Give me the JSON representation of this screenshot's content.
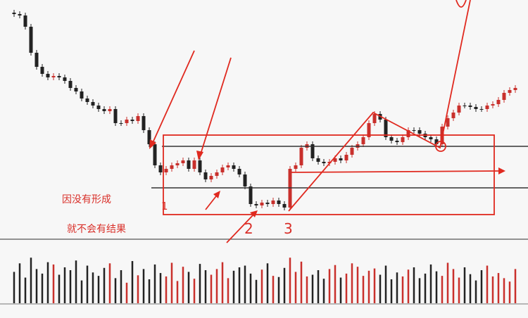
{
  "chart_data": {
    "type": "candlestick",
    "open": [
      322,
      320,
      318,
      302,
      265,
      245,
      235,
      230,
      232,
      230,
      225,
      215,
      210,
      200,
      195,
      190,
      185,
      182,
      185,
      165,
      165,
      170,
      168,
      175,
      155,
      135,
      105,
      95,
      100,
      105,
      108,
      112,
      100,
      112,
      95,
      85,
      90,
      95,
      102,
      105,
      100,
      92,
      75,
      50,
      48,
      52,
      50,
      55,
      50,
      45,
      100,
      105,
      130,
      135,
      115,
      110,
      108,
      110,
      115,
      112,
      120,
      130,
      135,
      145,
      165,
      178,
      170,
      145,
      140,
      138,
      145,
      155,
      155,
      150,
      145,
      142,
      135,
      160,
      172,
      180,
      190,
      190,
      188,
      185,
      185,
      190,
      192,
      198,
      208,
      212
    ],
    "high": [
      326,
      324,
      322,
      306,
      269,
      249,
      239,
      236,
      236,
      234,
      229,
      219,
      214,
      204,
      199,
      194,
      189,
      189,
      189,
      169,
      174,
      174,
      179,
      179,
      159,
      139,
      109,
      104,
      109,
      112,
      116,
      116,
      116,
      116,
      99,
      94,
      99,
      106,
      109,
      109,
      104,
      96,
      79,
      54,
      56,
      56,
      59,
      59,
      54,
      104,
      109,
      134,
      139,
      139,
      119,
      114,
      114,
      119,
      119,
      124,
      134,
      139,
      149,
      169,
      182,
      182,
      174,
      149,
      144,
      149,
      159,
      159,
      159,
      154,
      149,
      146,
      164,
      176,
      184,
      194,
      194,
      194,
      192,
      189,
      194,
      196,
      202,
      212,
      216,
      219
    ],
    "low": [
      316,
      314,
      298,
      261,
      241,
      231,
      226,
      226,
      226,
      221,
      211,
      206,
      196,
      191,
      186,
      181,
      178,
      178,
      161,
      161,
      161,
      164,
      164,
      151,
      131,
      101,
      91,
      91,
      96,
      101,
      104,
      96,
      96,
      91,
      81,
      81,
      86,
      91,
      98,
      96,
      88,
      71,
      46,
      44,
      44,
      46,
      46,
      46,
      41,
      41,
      96,
      101,
      126,
      111,
      106,
      104,
      104,
      106,
      108,
      108,
      116,
      126,
      131,
      141,
      161,
      166,
      141,
      136,
      134,
      134,
      141,
      151,
      146,
      141,
      138,
      131,
      131,
      156,
      168,
      176,
      186,
      184,
      181,
      181,
      181,
      186,
      188,
      194,
      204,
      208
    ],
    "close": [
      320,
      318,
      302,
      265,
      245,
      235,
      230,
      232,
      230,
      225,
      215,
      210,
      200,
      195,
      190,
      185,
      182,
      185,
      165,
      165,
      170,
      168,
      175,
      155,
      135,
      105,
      95,
      100,
      105,
      108,
      112,
      100,
      112,
      95,
      85,
      90,
      95,
      102,
      105,
      100,
      92,
      75,
      50,
      48,
      52,
      50,
      55,
      50,
      45,
      100,
      105,
      130,
      135,
      115,
      110,
      108,
      110,
      115,
      112,
      120,
      130,
      135,
      145,
      165,
      178,
      170,
      145,
      140,
      138,
      145,
      155,
      155,
      150,
      145,
      142,
      135,
      160,
      172,
      180,
      190,
      190,
      188,
      185,
      185,
      190,
      192,
      198,
      208,
      212,
      215
    ],
    "volume": [
      55,
      70,
      45,
      80,
      60,
      52,
      72,
      68,
      50,
      63,
      58,
      75,
      40,
      66,
      54,
      48,
      62,
      70,
      44,
      58,
      36,
      74,
      49,
      60,
      42,
      68,
      53,
      47,
      71,
      39,
      64,
      55,
      43,
      69,
      58,
      50,
      60,
      72,
      44,
      57,
      63,
      66,
      52,
      41,
      59,
      70,
      48,
      46,
      62,
      80,
      55,
      73,
      47,
      50,
      58,
      43,
      60,
      67,
      45,
      52,
      70,
      64,
      48,
      57,
      61,
      50,
      66,
      42,
      54,
      47,
      59,
      63,
      44,
      52,
      68,
      56,
      48,
      71,
      60,
      45,
      63,
      51,
      40,
      58,
      66,
      47,
      53,
      44,
      38,
      60
    ],
    "ylim": [
      0,
      340
    ],
    "vlim": [
      0,
      100
    ],
    "up_color": "#c9302c",
    "down_color": "#222222",
    "annotations": [
      "因没有形成",
      "就不会有结果",
      "1",
      "2",
      "3"
    ]
  }
}
